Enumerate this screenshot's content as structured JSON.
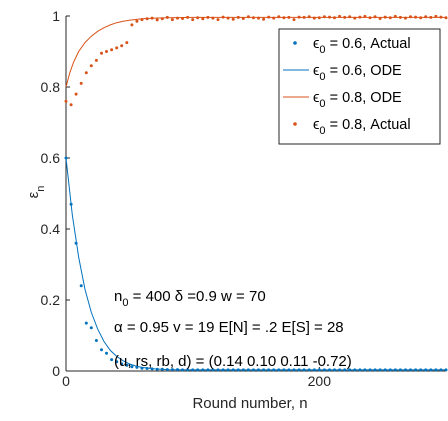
{
  "chart_data": {
    "type": "line",
    "xlabel": "Round number, n",
    "ylabel": "ε",
    "ylabel_sub": "n",
    "xlim": [
      0,
      300
    ],
    "ylim": [
      0,
      1
    ],
    "x_ticks": [
      0,
      200
    ],
    "y_ticks": [
      0,
      0.2,
      0.4,
      0.6,
      0.8,
      1
    ],
    "x_tick_labels": [
      "0",
      "200"
    ],
    "y_tick_labels": [
      "0",
      "0.2",
      "0.4",
      "0.6",
      "0.8",
      "1"
    ],
    "grid": false,
    "legend_position": "top-right",
    "legend": [
      {
        "marker": "point",
        "color": "#0072BD",
        "prefix": "ϵ",
        "sub": "0",
        "suffix": " = 0.6, Actual"
      },
      {
        "marker": "line",
        "color": "#0072BD",
        "prefix": "ϵ",
        "sub": "0",
        "suffix": " = 0.6, ODE"
      },
      {
        "marker": "line",
        "color": "#D95319",
        "prefix": "ϵ",
        "sub": "0",
        "suffix": " = 0.8, ODE"
      },
      {
        "marker": "point",
        "color": "#D95319",
        "prefix": "ϵ",
        "sub": "0",
        "suffix": " = 0.8, Actual"
      }
    ],
    "series": [
      {
        "name": "ϵ0 = 0.6, Actual",
        "kind": "points",
        "color": "#0072BD",
        "x": [
          0,
          4,
          8,
          12,
          16,
          20,
          24,
          28,
          32,
          36,
          40,
          44,
          48,
          52,
          56,
          60,
          64,
          68,
          72,
          76,
          80,
          84,
          88,
          92,
          96,
          100,
          104,
          108,
          112,
          116,
          120,
          124,
          128,
          132,
          136,
          140,
          144,
          148,
          152,
          156,
          160,
          164,
          168,
          172,
          176,
          180,
          184,
          188,
          192,
          196,
          200,
          204,
          208,
          212,
          216,
          220,
          224,
          228,
          232,
          236,
          240,
          244,
          248,
          252,
          256,
          260,
          264,
          268,
          272,
          276,
          280,
          284,
          288,
          292,
          296,
          300
        ],
        "y": [
          0.6,
          0.47,
          0.36,
          0.24,
          0.135,
          0.122,
          0.086,
          0.06,
          0.05,
          0.032,
          0.026,
          0.02,
          0.016,
          0.012,
          0.01,
          0.008,
          0.007,
          0.006,
          0.005,
          0.005,
          0.004,
          0.004,
          0.004,
          0.003,
          0.003,
          0.003,
          0.003,
          0.003,
          0.003,
          0.003,
          0.003,
          0.003,
          0.003,
          0.003,
          0.003,
          0.003,
          0.003,
          0.003,
          0.003,
          0.003,
          0.003,
          0.003,
          0.003,
          0.003,
          0.003,
          0.003,
          0.003,
          0.003,
          0.003,
          0.003,
          0.003,
          0.003,
          0.003,
          0.003,
          0.003,
          0.003,
          0.003,
          0.003,
          0.003,
          0.003,
          0.003,
          0.003,
          0.003,
          0.003,
          0.003,
          0.003,
          0.003,
          0.003,
          0.003,
          0.003,
          0.003,
          0.003,
          0.003,
          0.003,
          0.003,
          0.003
        ]
      },
      {
        "name": "ϵ0 = 0.6, ODE",
        "kind": "line",
        "color": "#0072BD",
        "x": [
          0,
          5,
          10,
          15,
          20,
          25,
          30,
          35,
          40,
          45,
          50,
          55,
          60,
          70,
          80,
          100,
          120,
          150,
          200,
          250,
          300
        ],
        "y": [
          0.6,
          0.44,
          0.32,
          0.23,
          0.165,
          0.118,
          0.083,
          0.058,
          0.041,
          0.029,
          0.02,
          0.014,
          0.01,
          0.006,
          0.004,
          0.003,
          0.003,
          0.003,
          0.003,
          0.003,
          0.003
        ]
      },
      {
        "name": "ϵ0 = 0.8, ODE",
        "kind": "line",
        "color": "#D95319",
        "x": [
          0,
          3,
          6,
          10,
          15,
          20,
          25,
          30,
          35,
          40,
          45,
          50,
          60,
          70,
          80,
          100,
          150,
          200,
          250,
          300
        ],
        "y": [
          0.8,
          0.84,
          0.87,
          0.9,
          0.925,
          0.943,
          0.957,
          0.967,
          0.975,
          0.981,
          0.985,
          0.988,
          0.992,
          0.994,
          0.995,
          0.996,
          0.996,
          0.996,
          0.996,
          0.996
        ]
      },
      {
        "name": "ϵ0 = 0.8, Actual",
        "kind": "points",
        "color": "#D95319",
        "x": [
          0,
          4,
          8,
          12,
          16,
          20,
          24,
          28,
          32,
          36,
          40,
          44,
          48,
          52,
          56,
          60,
          64,
          68,
          72,
          76,
          80,
          84,
          88,
          92,
          96,
          100,
          104,
          108,
          112,
          116,
          120,
          124,
          128,
          132,
          136,
          140,
          144,
          148,
          152,
          156,
          160,
          164,
          168,
          172,
          176,
          180,
          184,
          188,
          192,
          196,
          200,
          204,
          208,
          212,
          216,
          220,
          224,
          228,
          232,
          236,
          240,
          244,
          248,
          252,
          256,
          260,
          264,
          268,
          272,
          276,
          280,
          284,
          288,
          292,
          296,
          300
        ],
        "y": [
          0.76,
          0.75,
          0.78,
          0.81,
          0.84,
          0.86,
          0.875,
          0.895,
          0.9,
          0.905,
          0.91,
          0.916,
          0.925,
          0.975,
          0.985,
          0.99,
          0.992,
          0.994,
          0.989,
          0.992,
          0.996,
          0.99,
          0.994,
          0.993,
          0.996,
          0.99,
          0.995,
          0.992,
          0.996,
          0.994,
          0.99,
          0.997,
          0.994,
          0.991,
          0.996,
          0.993,
          0.998,
          0.995,
          0.994,
          0.991,
          0.997,
          0.994,
          0.998,
          0.995,
          0.996,
          0.99,
          0.997,
          0.996,
          0.998,
          0.994,
          0.995,
          0.998,
          0.997,
          0.995,
          0.999,
          0.996,
          0.998,
          0.994,
          0.997,
          0.999,
          0.995,
          0.998,
          0.993,
          0.997,
          0.995,
          0.999,
          0.996,
          0.994,
          0.998,
          0.997,
          0.995,
          0.998,
          0.996,
          0.999,
          0.997,
          0.995
        ]
      }
    ],
    "annotations": [
      {
        "parts": [
          [
            "n",
            ""
          ],
          [
            "0",
            "sub"
          ],
          [
            " = 400    δ =0.9 w = 70",
            ""
          ]
        ]
      },
      {
        "parts": [
          [
            "α = 0.95  v = 19 E[N] = .2  E[S] = 28",
            ""
          ]
        ]
      },
      {
        "parts": [
          [
            "(u, rs, rb, d) = (0.14 0.10 0.11 -0.72)",
            ""
          ]
        ]
      }
    ]
  }
}
